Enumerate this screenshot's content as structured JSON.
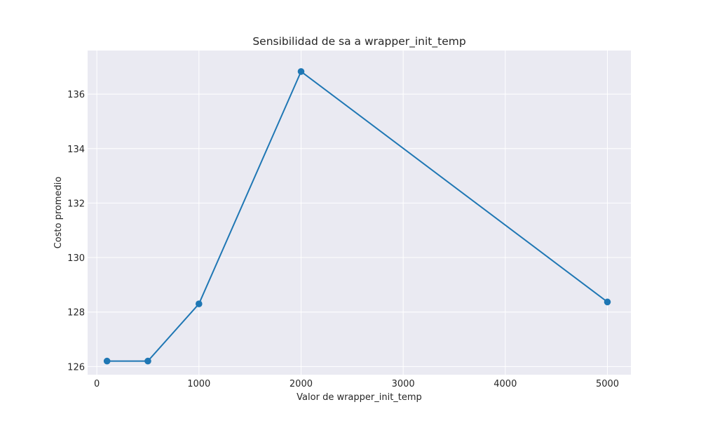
{
  "chart_data": {
    "type": "line",
    "title": "Sensibilidad de sa a wrapper_init_temp",
    "xlabel": "Valor de wrapper_init_temp",
    "ylabel": "Costo promedio",
    "x": [
      100,
      500,
      1000,
      2000,
      5000
    ],
    "series": [
      {
        "values": [
          126.2,
          126.2,
          128.3,
          136.83,
          128.37
        ]
      }
    ],
    "xlim": [
      -90,
      5230
    ],
    "ylim": [
      125.7,
      137.6
    ],
    "x_ticks": [
      0,
      1000,
      2000,
      3000,
      4000,
      5000
    ],
    "x_tick_labels": [
      "0",
      "1000",
      "2000",
      "3000",
      "4000",
      "5000"
    ],
    "y_ticks": [
      126,
      128,
      130,
      132,
      134,
      136
    ],
    "y_tick_labels": [
      "126",
      "128",
      "130",
      "132",
      "134",
      "136"
    ],
    "grid": true,
    "colors": {
      "line": "#1f77b4",
      "background": "#eaeaf2",
      "grid": "#ffffff"
    }
  }
}
